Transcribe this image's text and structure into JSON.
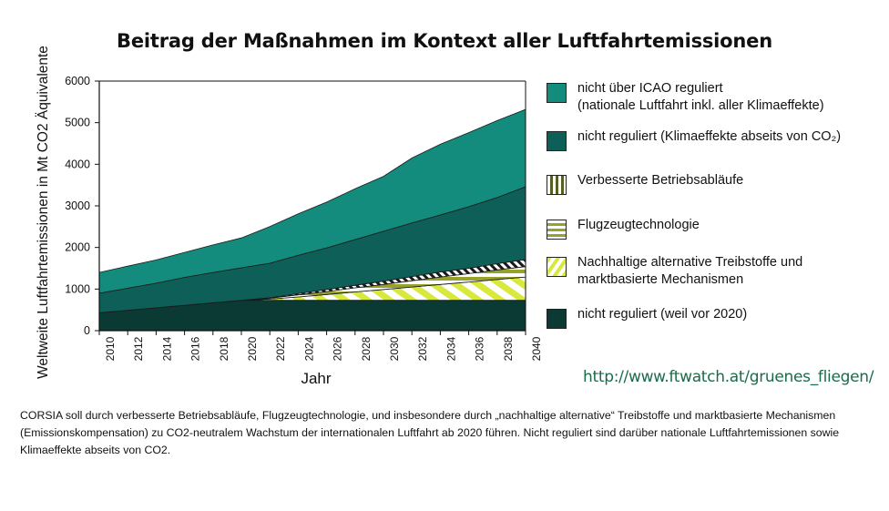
{
  "title": "Beitrag der Maßnahmen im Kontext aller Luftfahrtemissionen",
  "url": "http://www.ftwatch.at/gruenes_fliegen/",
  "caption": "CORSIA soll durch verbesserte Betriebsabläufe, Flugzeugtechnologie, und insbesondere durch „nachhaltige alternative“ Treibstoffe und marktbasierte Mechanismen (Emissionskompensation) zu CO2-neutralem Wachstum der internationalen Luftfahrt ab 2020 führen. Nicht reguliert sind darüber nationale Luftfahrtemissionen sowie Klimaeffekte abseits von CO2.",
  "colors": {
    "icao": "#148c7d",
    "non_co2": "#0e5f57",
    "dark": "#0b3a35",
    "stripe_yellow": "#d9e83c",
    "stripe_green": "#96a22a",
    "background": "#ffffff",
    "url": "#1b6b4a"
  },
  "chart_data": {
    "type": "area",
    "title": "Beitrag der Maßnahmen im Kontext aller Luftfahrtemissionen",
    "xlabel": "Jahr",
    "ylabel": "Weltweite Luftfahrtemissionen in Mt CO2 Äquivalente",
    "x": [
      2010,
      2012,
      2014,
      2016,
      2018,
      2020,
      2022,
      2024,
      2026,
      2028,
      2030,
      2032,
      2034,
      2036,
      2038,
      2040
    ],
    "xticks": [
      "2010",
      "2012",
      "2014",
      "2016",
      "2018",
      "2020",
      "2022",
      "2024",
      "2026",
      "2028",
      "2030",
      "2032",
      "2034",
      "2036",
      "2038",
      "2040"
    ],
    "ylim": [
      0,
      6000
    ],
    "yticks": [
      "0",
      "1000",
      "2000",
      "3000",
      "4000",
      "5000",
      "6000"
    ],
    "grid": false,
    "legend_position": "right",
    "series": [
      {
        "name": "nicht reguliert (weil vor 2020)",
        "role": "dark",
        "values": [
          430,
          490,
          550,
          610,
          670,
          730,
          730,
          730,
          730,
          730,
          730,
          730,
          730,
          730,
          730,
          730
        ]
      },
      {
        "name": "Nachhaltige alternative Treibstoffe und marktbasierte Mechanismen",
        "role": "saf",
        "values": [
          0,
          0,
          0,
          0,
          0,
          0,
          30,
          80,
          140,
          200,
          260,
          320,
          380,
          440,
          500,
          560
        ]
      },
      {
        "name": "Flugzeugtechnologie",
        "role": "tech",
        "values": [
          0,
          0,
          0,
          0,
          0,
          0,
          20,
          50,
          70,
          100,
          120,
          150,
          180,
          200,
          230,
          250
        ]
      },
      {
        "name": "Verbesserte Betriebsabläufe",
        "role": "ops",
        "values": [
          0,
          0,
          0,
          0,
          0,
          0,
          10,
          30,
          50,
          60,
          80,
          100,
          120,
          130,
          150,
          170
        ]
      },
      {
        "name": "nicht reguliert (Klimaeffekte abseits von CO2)",
        "role": "non_co2",
        "values": [
          470,
          530,
          590,
          670,
          730,
          780,
          830,
          920,
          1000,
          1100,
          1200,
          1290,
          1370,
          1480,
          1590,
          1750
        ]
      },
      {
        "name": "nicht über ICAO reguliert (nationale Luftfahrt inkl. aller Klimaeffekte)",
        "role": "icao",
        "values": [
          500,
          530,
          560,
          600,
          660,
          720,
          880,
          1000,
          1100,
          1220,
          1320,
          1560,
          1700,
          1780,
          1850,
          1860
        ]
      }
    ]
  },
  "legend": [
    {
      "text": "nicht über ICAO reguliert\n(nationale Luftfahrt inkl. aller Klimaeffekte)",
      "swatch": "icao"
    },
    {
      "text": "nicht reguliert (Klimaeffekte abseits von CO₂)",
      "swatch": "non_co2"
    },
    {
      "text": "Verbesserte Betriebsabläufe",
      "swatch": "ops"
    },
    {
      "text": "Flugzeugtechnologie",
      "swatch": "tech"
    },
    {
      "text": "Nachhaltige alternative Treibstoffe und\nmarktbasierte Mechanismen",
      "swatch": "saf"
    },
    {
      "text": "nicht reguliert (weil vor 2020)",
      "swatch": "dark"
    }
  ]
}
